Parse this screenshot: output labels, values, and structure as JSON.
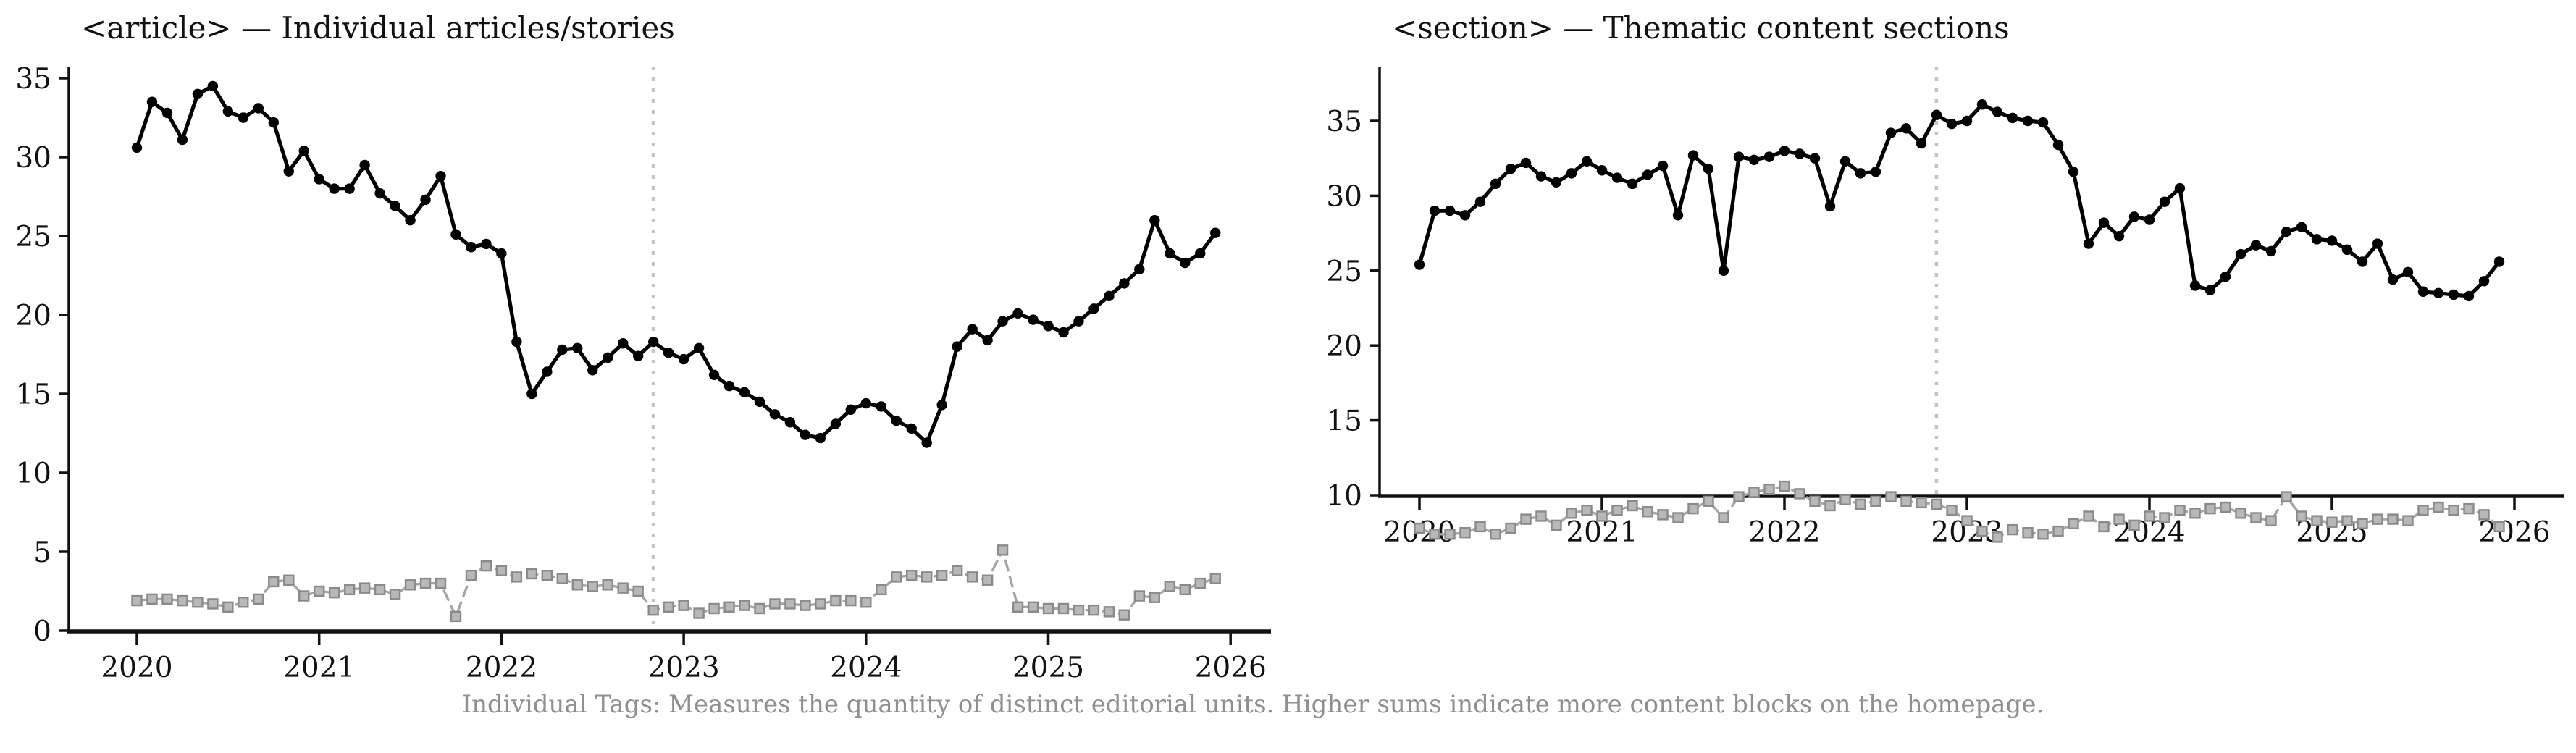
{
  "figure": {
    "caption": "Individual Tags: Measures the quantity of distinct editorial units. Higher sums indicate more content blocks on the homepage.",
    "background": "#ffffff",
    "caption_color": "#8f8f8f",
    "text_color": "#111111"
  },
  "charts": [
    {
      "id": "article",
      "title": "<article> — Individual articles/stories",
      "chart_data": {
        "type": "line",
        "x_monthly_start": "2020-01",
        "x_monthly_end": "2025-12",
        "x_tick_labels": [
          "2020",
          "2021",
          "2022",
          "2023",
          "2024",
          "2025",
          "2026"
        ],
        "y_tick_labels": [
          0,
          5,
          10,
          15,
          20,
          25,
          30,
          35
        ],
        "ylim": [
          -0.9,
          36.8
        ],
        "xlim": [
          2019.63,
          2026.22
        ],
        "grid": false,
        "legend": "none",
        "vline": {
          "x": 2022.833,
          "color": "#c4c4c4",
          "style": "dotted"
        },
        "series": [
          {
            "name": "article-tag-count",
            "color": "#000000",
            "marker": "circle",
            "line_style": "solid",
            "values": [
              30.6,
              33.5,
              32.8,
              31.1,
              34.0,
              34.5,
              32.9,
              32.5,
              33.1,
              32.2,
              29.1,
              30.4,
              28.6,
              28.0,
              28.0,
              29.5,
              27.7,
              26.9,
              26.0,
              27.3,
              28.8,
              25.1,
              24.3,
              24.5,
              23.9,
              18.3,
              15.0,
              16.4,
              17.8,
              17.9,
              16.5,
              17.3,
              18.2,
              17.4,
              18.3,
              17.6,
              17.2,
              17.9,
              16.2,
              15.5,
              15.1,
              14.5,
              13.7,
              13.2,
              12.4,
              12.2,
              13.1,
              14.0,
              14.4,
              14.2,
              13.3,
              12.8,
              11.9,
              14.3,
              18.0,
              19.1,
              18.4,
              19.6,
              20.1,
              19.7,
              19.3,
              18.9,
              19.6,
              20.4,
              21.2,
              22.0,
              22.9,
              26.0,
              23.9,
              23.3,
              23.9,
              25.2
            ]
          },
          {
            "name": "article-secondary-count",
            "color": "#a6a6a6",
            "marker": "square",
            "marker_fill": "#b8b8b8",
            "marker_edge": "#8a8a8a",
            "line_style": "dashed",
            "values": [
              1.9,
              2.0,
              2.0,
              1.9,
              1.8,
              1.7,
              1.5,
              1.8,
              2.0,
              3.1,
              3.2,
              2.2,
              2.5,
              2.4,
              2.6,
              2.7,
              2.6,
              2.3,
              2.9,
              3.0,
              3.0,
              0.9,
              3.5,
              4.1,
              3.8,
              3.4,
              3.6,
              3.5,
              3.3,
              2.9,
              2.8,
              2.9,
              2.7,
              2.5,
              1.3,
              1.5,
              1.6,
              1.1,
              1.4,
              1.5,
              1.6,
              1.4,
              1.7,
              1.7,
              1.6,
              1.7,
              1.9,
              1.9,
              1.8,
              2.6,
              3.4,
              3.5,
              3.4,
              3.5,
              3.8,
              3.4,
              3.2,
              5.1,
              1.5,
              1.5,
              1.4,
              1.4,
              1.3,
              1.3,
              1.2,
              1.0,
              2.2,
              2.1,
              2.8,
              2.6,
              3.0,
              3.3
            ]
          }
        ]
      }
    },
    {
      "id": "section",
      "title": "<section> — Thematic content sections",
      "chart_data": {
        "type": "line",
        "x_monthly_start": "2020-01",
        "x_monthly_end": "2025-12",
        "x_tick_labels": [
          "2020",
          "2021",
          "2022",
          "2023",
          "2024",
          "2025",
          "2026"
        ],
        "y_tick_labels": [
          10,
          15,
          20,
          25,
          30,
          35
        ],
        "ylim": [
          1.0,
          37.3
        ],
        "xlim": [
          2019.78,
          2026.27
        ],
        "grid": false,
        "legend": "none",
        "vline": {
          "x": 2022.833,
          "color": "#c4c4c4",
          "style": "dotted"
        },
        "series": [
          {
            "name": "section-tag-count",
            "color": "#000000",
            "marker": "circle",
            "line_style": "solid",
            "values": [
              25.4,
              29.0,
              29.0,
              28.7,
              29.6,
              30.8,
              31.8,
              32.2,
              31.3,
              30.9,
              31.5,
              32.3,
              31.7,
              31.2,
              30.8,
              31.4,
              32.0,
              28.7,
              32.7,
              31.8,
              25.0,
              32.6,
              32.4,
              32.6,
              33.0,
              32.8,
              32.5,
              29.3,
              32.3,
              31.5,
              31.6,
              34.2,
              34.5,
              33.5,
              35.4,
              34.8,
              35.0,
              36.1,
              35.6,
              35.2,
              35.0,
              34.9,
              33.4,
              31.6,
              26.8,
              28.2,
              27.3,
              28.6,
              28.4,
              29.6,
              30.5,
              24.0,
              23.7,
              24.6,
              26.1,
              26.7,
              26.3,
              27.6,
              27.9,
              27.1,
              27.0,
              26.4,
              25.6,
              26.8,
              24.4,
              24.9,
              23.6,
              23.5,
              23.4,
              23.3,
              24.3,
              25.6
            ]
          },
          {
            "name": "section-secondary-count",
            "color": "#a6a6a6",
            "marker": "square",
            "marker_fill": "#b8b8b8",
            "marker_edge": "#8a8a8a",
            "line_style": "dashed",
            "values": [
              7.8,
              7.4,
              7.4,
              7.5,
              7.9,
              7.4,
              7.8,
              8.4,
              8.6,
              8.0,
              8.8,
              9.0,
              8.6,
              9.0,
              9.3,
              8.9,
              8.7,
              8.5,
              9.1,
              9.6,
              8.5,
              9.9,
              10.2,
              10.4,
              10.6,
              10.1,
              9.6,
              9.3,
              9.7,
              9.4,
              9.6,
              9.9,
              9.6,
              9.5,
              9.4,
              9.0,
              8.3,
              7.6,
              7.2,
              7.7,
              7.5,
              7.4,
              7.6,
              8.1,
              8.6,
              7.9,
              8.4,
              8.0,
              8.6,
              8.5,
              9.0,
              8.8,
              9.1,
              9.2,
              8.8,
              8.5,
              8.3,
              9.9,
              8.6,
              8.3,
              8.2,
              8.3,
              8.1,
              8.4,
              8.4,
              8.3,
              9.0,
              9.2,
              9.0,
              9.1,
              8.7,
              7.9
            ]
          }
        ]
      }
    }
  ]
}
